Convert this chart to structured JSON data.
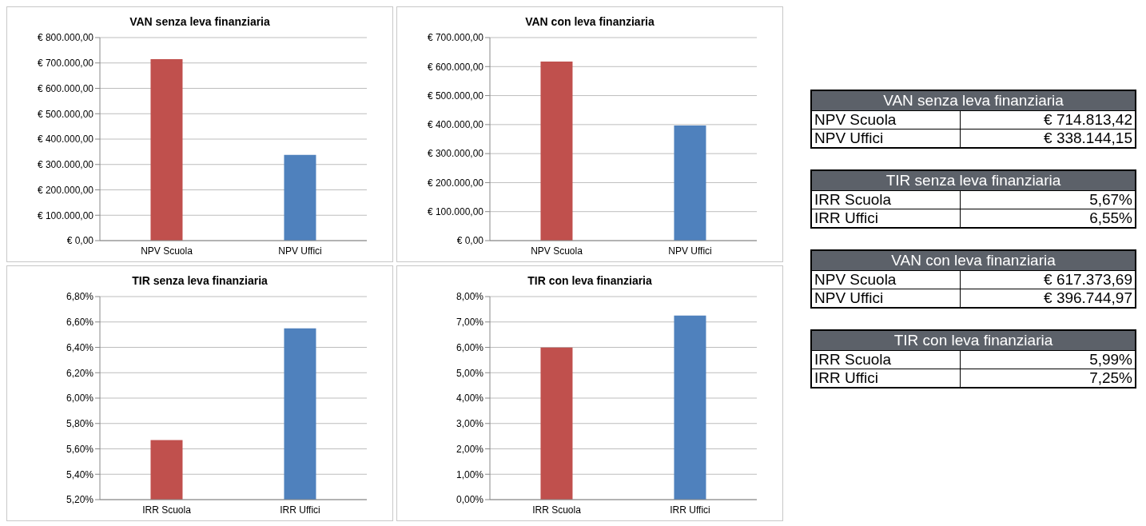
{
  "chart_data": [
    {
      "type": "bar",
      "title": "VAN senza leva finanziaria",
      "categories": [
        "NPV Scuola",
        "NPV Uffici"
      ],
      "values": [
        714813.42,
        338144.15
      ],
      "colors": [
        "#c0504d",
        "#4f81bd"
      ],
      "ylim": [
        0,
        800000
      ],
      "yticks": [
        {
          "value": 0,
          "label": "€ 0,00"
        },
        {
          "value": 100000,
          "label": "€ 100.000,00"
        },
        {
          "value": 200000,
          "label": "€ 200.000,00"
        },
        {
          "value": 300000,
          "label": "€ 300.000,00"
        },
        {
          "value": 400000,
          "label": "€ 400.000,00"
        },
        {
          "value": 500000,
          "label": "€ 500.000,00"
        },
        {
          "value": 600000,
          "label": "€ 600.000,00"
        },
        {
          "value": 700000,
          "label": "€ 700.000,00"
        },
        {
          "value": 800000,
          "label": "€ 800.000,00"
        }
      ],
      "grid": "y"
    },
    {
      "type": "bar",
      "title": "VAN con leva finanziaria",
      "categories": [
        "NPV Scuola",
        "NPV Uffici"
      ],
      "values": [
        617373.69,
        396744.97
      ],
      "colors": [
        "#c0504d",
        "#4f81bd"
      ],
      "ylim": [
        0,
        700000
      ],
      "yticks": [
        {
          "value": 0,
          "label": "€ 0,00"
        },
        {
          "value": 100000,
          "label": "€ 100.000,00"
        },
        {
          "value": 200000,
          "label": "€ 200.000,00"
        },
        {
          "value": 300000,
          "label": "€ 300.000,00"
        },
        {
          "value": 400000,
          "label": "€ 400.000,00"
        },
        {
          "value": 500000,
          "label": "€ 500.000,00"
        },
        {
          "value": 600000,
          "label": "€ 600.000,00"
        },
        {
          "value": 700000,
          "label": "€ 700.000,00"
        }
      ],
      "grid": "y"
    },
    {
      "type": "bar",
      "title": "TIR senza leva finanziaria",
      "categories": [
        "IRR Scuola",
        "IRR Uffici"
      ],
      "values": [
        5.67,
        6.55
      ],
      "colors": [
        "#c0504d",
        "#4f81bd"
      ],
      "ylim": [
        5.2,
        6.8
      ],
      "yticks": [
        {
          "value": 5.2,
          "label": "5,20%"
        },
        {
          "value": 5.4,
          "label": "5,40%"
        },
        {
          "value": 5.6,
          "label": "5,60%"
        },
        {
          "value": 5.8,
          "label": "5,80%"
        },
        {
          "value": 6.0,
          "label": "6,00%"
        },
        {
          "value": 6.2,
          "label": "6,20%"
        },
        {
          "value": 6.4,
          "label": "6,40%"
        },
        {
          "value": 6.6,
          "label": "6,60%"
        },
        {
          "value": 6.8,
          "label": "6,80%"
        }
      ],
      "grid": "y"
    },
    {
      "type": "bar",
      "title": "TIR con leva finanziaria",
      "categories": [
        "IRR Scuola",
        "IRR Uffici"
      ],
      "values": [
        5.99,
        7.25
      ],
      "colors": [
        "#c0504d",
        "#4f81bd"
      ],
      "ylim": [
        0,
        8
      ],
      "yticks": [
        {
          "value": 0,
          "label": "0,00%"
        },
        {
          "value": 1,
          "label": "1,00%"
        },
        {
          "value": 2,
          "label": "2,00%"
        },
        {
          "value": 3,
          "label": "3,00%"
        },
        {
          "value": 4,
          "label": "4,00%"
        },
        {
          "value": 5,
          "label": "5,00%"
        },
        {
          "value": 6,
          "label": "6,00%"
        },
        {
          "value": 7,
          "label": "7,00%"
        },
        {
          "value": 8,
          "label": "8,00%"
        }
      ],
      "grid": "y"
    },
    {
      "type": "other",
      "title": "VAN senza leva finanziaria",
      "categories": [
        "NPV Scuola",
        "NPV Uffici"
      ],
      "value_labels": [
        "€ 714.813,42",
        "€ 338.144,15"
      ]
    },
    {
      "type": "other",
      "title": "TIR senza leva finanziaria",
      "categories": [
        "IRR Scuola",
        "IRR Uffici"
      ],
      "value_labels": [
        "5,67%",
        "6,55%"
      ]
    },
    {
      "type": "other",
      "title": "VAN con leva finanziaria",
      "categories": [
        "NPV Scuola",
        "NPV Uffici"
      ],
      "value_labels": [
        "€ 617.373,69",
        "€ 396.744,97"
      ]
    },
    {
      "type": "other",
      "title": "TIR con leva finanziaria",
      "categories": [
        "IRR Scuola",
        "IRR Uffici"
      ],
      "value_labels": [
        "5,99%",
        "7,25%"
      ]
    }
  ]
}
